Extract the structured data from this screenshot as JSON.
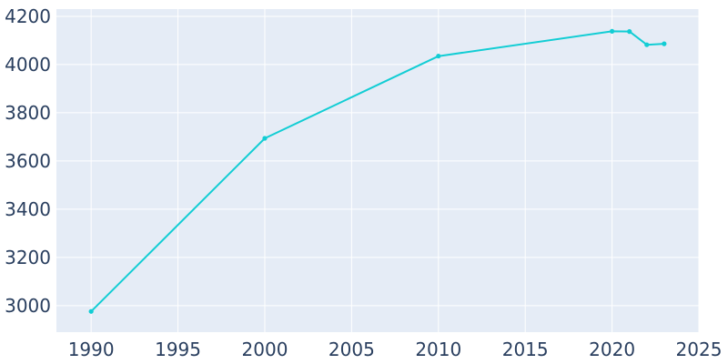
{
  "chart_data": {
    "type": "line",
    "title": "",
    "xlabel": "",
    "ylabel": "",
    "xlim": [
      1988,
      2025
    ],
    "ylim": [
      2890,
      4230
    ],
    "xticks": [
      1990,
      1995,
      2000,
      2005,
      2010,
      2015,
      2020,
      2025
    ],
    "yticks": [
      3000,
      3200,
      3400,
      3600,
      3800,
      4000,
      4200
    ],
    "grid": true,
    "legend": "none",
    "colors": {
      "line": "#12cdd4",
      "plot_bg": "#e5ecf6",
      "grid": "#ffffff",
      "text": "#2a3f5f"
    },
    "series": [
      {
        "x": [
          1990,
          2000,
          2010,
          2020,
          2021,
          2022,
          2023
        ],
        "y": [
          2976,
          3694,
          4035,
          4138,
          4137,
          4082,
          4086
        ]
      }
    ]
  }
}
